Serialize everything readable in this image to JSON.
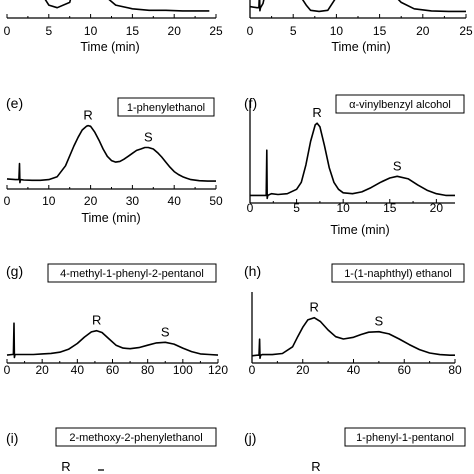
{
  "chart_data": [
    {
      "id": "top-left",
      "panel": "",
      "type": "line",
      "compound": "",
      "xlabel": "Time (min)",
      "xlim": [
        0,
        25
      ],
      "xticks": [
        0,
        5,
        10,
        15,
        20,
        25
      ],
      "peaks": [],
      "injection_time": 1.0,
      "series": [
        {
          "x": [
            0.0,
            1.5,
            2.6,
            3.0,
            3.6,
            4.2,
            5.0,
            6.0,
            7.5,
            8.6,
            9.1,
            10.0,
            10.7,
            11.5,
            13.0,
            15.0,
            17.0,
            19.0,
            21.0,
            23.0,
            24.2
          ],
          "y": [
            0.5,
            0.3,
            0.85,
            0.9,
            0.7,
            0.35,
            0.15,
            0.1,
            0.2,
            0.85,
            0.95,
            0.8,
            0.55,
            0.35,
            0.15,
            0.08,
            0.05,
            0.05,
            0.04,
            0.04,
            0.04
          ]
        }
      ]
    },
    {
      "id": "top-right",
      "panel": "",
      "type": "line",
      "compound": "",
      "xlabel": "Time (min)",
      "xlim": [
        0,
        25
      ],
      "xticks": [
        0,
        5,
        10,
        15,
        20,
        25
      ],
      "peaks": [],
      "injection_time": 1.1,
      "series": [
        {
          "x": [
            0.0,
            0.8,
            1.5,
            2.0,
            3.0,
            4.5,
            5.5,
            6.5,
            7.0,
            8.0,
            9.0,
            10.0,
            11.0,
            13.0,
            14.5,
            16.0,
            17.5,
            19.0,
            21.0,
            23.0,
            25.0
          ],
          "y": [
            0.12,
            0.1,
            0.18,
            0.55,
            0.65,
            0.55,
            0.4,
            0.15,
            0.05,
            0.03,
            0.05,
            0.3,
            0.7,
            0.95,
            0.8,
            0.45,
            0.2,
            0.08,
            0.04,
            0.03,
            0.03
          ]
        }
      ]
    },
    {
      "id": "panel-e",
      "panel": "(e)",
      "type": "line",
      "compound": "1-phenylethanol",
      "xlabel": "Time (min)",
      "xlim": [
        0,
        50
      ],
      "xticks": [
        0,
        10,
        20,
        30,
        40,
        50
      ],
      "injection_time": 3.0,
      "peaks": [
        {
          "label": "R",
          "x": 19.4,
          "y": 0.8
        },
        {
          "label": "S",
          "x": 33.8,
          "y": 0.5
        }
      ],
      "series": [
        {
          "x": [
            0,
            2,
            4,
            6,
            8,
            10,
            12,
            14,
            16,
            17,
            18,
            19,
            19.4,
            20,
            21,
            22,
            23,
            24,
            25,
            26,
            27,
            28,
            29,
            30,
            31,
            32,
            33,
            33.8,
            35,
            36,
            37,
            38,
            39,
            40,
            41,
            42,
            43,
            44,
            46,
            48,
            50
          ],
          "y": [
            0.07,
            0.06,
            0.055,
            0.05,
            0.05,
            0.06,
            0.1,
            0.25,
            0.52,
            0.64,
            0.74,
            0.79,
            0.8,
            0.79,
            0.71,
            0.6,
            0.48,
            0.38,
            0.32,
            0.3,
            0.31,
            0.34,
            0.38,
            0.42,
            0.46,
            0.48,
            0.5,
            0.5,
            0.48,
            0.43,
            0.37,
            0.3,
            0.23,
            0.17,
            0.13,
            0.1,
            0.08,
            0.06,
            0.045,
            0.04,
            0.04
          ]
        }
      ]
    },
    {
      "id": "panel-f",
      "panel": "(f)",
      "type": "line",
      "compound": "α-vinylbenzyl alcohol",
      "xlabel": "Time (min)",
      "xlim": [
        0,
        22
      ],
      "xticks": [
        0,
        5,
        10,
        15,
        20
      ],
      "injection_time": 1.8,
      "peaks": [
        {
          "label": "R",
          "x": 7.2,
          "y": 0.86
        },
        {
          "label": "S",
          "x": 15.8,
          "y": 0.25
        }
      ],
      "series": [
        {
          "x": [
            0,
            1,
            2.3,
            3,
            4,
            5,
            5.5,
            6,
            6.5,
            7,
            7.2,
            7.5,
            8,
            8.5,
            9,
            9.5,
            10,
            11,
            12,
            13,
            14,
            15,
            15.8,
            17,
            18,
            19,
            20,
            21,
            22
          ],
          "y": [
            0.03,
            0.03,
            0.05,
            0.04,
            0.05,
            0.1,
            0.18,
            0.38,
            0.65,
            0.84,
            0.86,
            0.82,
            0.6,
            0.35,
            0.18,
            0.1,
            0.06,
            0.05,
            0.07,
            0.12,
            0.18,
            0.23,
            0.25,
            0.22,
            0.15,
            0.09,
            0.05,
            0.03,
            0.03
          ]
        }
      ]
    },
    {
      "id": "panel-g",
      "panel": "(g)",
      "type": "line",
      "compound": "4-methyl-1-phenyl-2-pentanol",
      "xlabel": "",
      "xlim": [
        0,
        120
      ],
      "xticks": [
        0,
        20,
        40,
        60,
        80,
        100,
        120
      ],
      "injection_time": 4.0,
      "peaks": [
        {
          "label": "R",
          "x": 51,
          "y": 0.47
        },
        {
          "label": "S",
          "x": 90,
          "y": 0.27
        }
      ],
      "series": [
        {
          "x": [
            0,
            3,
            6,
            10,
            15,
            20,
            25,
            30,
            35,
            40,
            44,
            48,
            51,
            54,
            58,
            62,
            66,
            70,
            75,
            80,
            85,
            90,
            95,
            100,
            105,
            110,
            115,
            120
          ],
          "y": [
            0.05,
            0.06,
            0.06,
            0.06,
            0.06,
            0.07,
            0.08,
            0.1,
            0.15,
            0.25,
            0.36,
            0.45,
            0.47,
            0.44,
            0.33,
            0.22,
            0.17,
            0.16,
            0.18,
            0.22,
            0.26,
            0.27,
            0.24,
            0.17,
            0.11,
            0.07,
            0.06,
            0.05
          ]
        }
      ]
    },
    {
      "id": "panel-h",
      "panel": "(h)",
      "type": "line",
      "compound": "1-(1-naphthyl) ethanol",
      "xlabel": "",
      "xlim": [
        0,
        80
      ],
      "xticks": [
        0,
        20,
        40,
        60,
        80
      ],
      "injection_time": 3.0,
      "peaks": [
        {
          "label": "R",
          "x": 24.5,
          "y": 0.72
        },
        {
          "label": "S",
          "x": 50,
          "y": 0.47
        }
      ],
      "series": [
        {
          "x": [
            0,
            2,
            4,
            8,
            12,
            16,
            18,
            20,
            22,
            24.5,
            27,
            30,
            33,
            36,
            40,
            43,
            46,
            50,
            54,
            58,
            62,
            66,
            70,
            74,
            78,
            80
          ],
          "y": [
            0.04,
            0.05,
            0.06,
            0.06,
            0.08,
            0.2,
            0.38,
            0.55,
            0.68,
            0.72,
            0.65,
            0.5,
            0.38,
            0.34,
            0.37,
            0.42,
            0.46,
            0.47,
            0.43,
            0.34,
            0.24,
            0.15,
            0.09,
            0.06,
            0.05,
            0.05
          ]
        }
      ]
    },
    {
      "id": "panel-i",
      "panel": "(i)",
      "compound": "2-methoxy-2-phenylethanol",
      "peaks": [
        {
          "label": "R"
        }
      ]
    },
    {
      "id": "panel-j",
      "panel": "(j)",
      "compound": "1-phenyl-1-pentanol",
      "peaks": [
        {
          "label": "R"
        }
      ]
    }
  ]
}
